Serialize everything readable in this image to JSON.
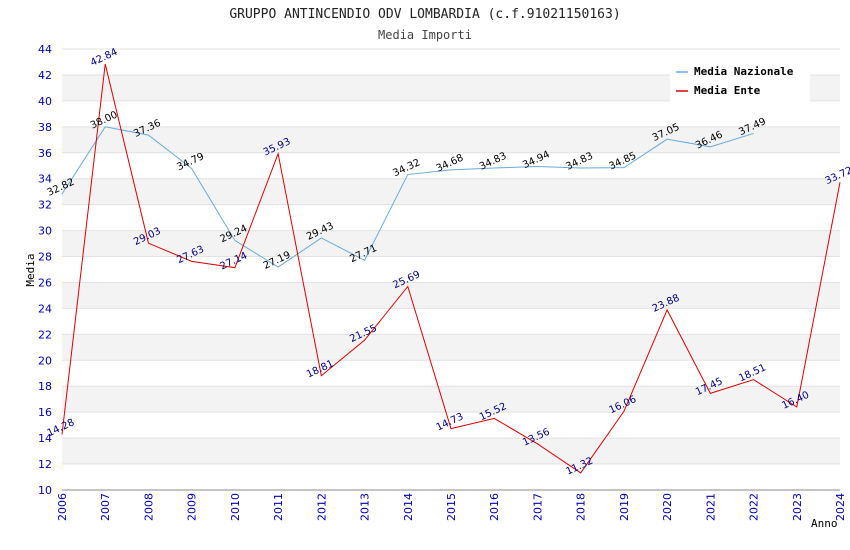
{
  "chart_data": {
    "type": "line",
    "title": "GRUPPO ANTINCENDIO ODV LOMBARDIA (c.f.91021150163)",
    "subtitle": "Media Importi",
    "xlabel": "Anno",
    "ylabel": "Media",
    "ylim": [
      10,
      44
    ],
    "y_ticks": [
      "10",
      "12",
      "14",
      "16",
      "18",
      "20",
      "22",
      "24",
      "26",
      "28",
      "30",
      "32",
      "34",
      "36",
      "38",
      "40",
      "42",
      "44"
    ],
    "categories": [
      "2006",
      "2007",
      "2008",
      "2009",
      "2010",
      "2011",
      "2012",
      "2013",
      "2014",
      "2015",
      "2016",
      "2017",
      "2018",
      "2019",
      "2020",
      "2021",
      "2022",
      "2023",
      "2024"
    ],
    "series": [
      {
        "name": "Media Nazionale",
        "color": "#66aadd",
        "values": [
          32.82,
          38.0,
          37.36,
          34.79,
          29.24,
          27.19,
          29.43,
          27.71,
          34.32,
          34.68,
          34.83,
          34.94,
          34.83,
          34.85,
          37.05,
          36.46,
          37.49,
          null,
          null
        ],
        "labels": [
          "32.82",
          "38.00",
          "37.36",
          "34.79",
          "29.24",
          "27.19",
          "29.43",
          "27.71",
          "34.32",
          "34.68",
          "34.83",
          "34.94",
          "34.83",
          "34.85",
          "37.05",
          "36.46",
          "37.49",
          null,
          null
        ]
      },
      {
        "name": "Media Ente",
        "color": "#dd0000",
        "values": [
          14.28,
          42.84,
          29.03,
          27.63,
          27.14,
          35.93,
          18.81,
          21.55,
          25.69,
          14.73,
          15.52,
          13.56,
          11.32,
          16.06,
          23.88,
          17.45,
          18.51,
          16.4,
          33.72
        ],
        "labels": [
          "14.28",
          "42.84",
          "29.03",
          "27.63",
          "27.14",
          "35.93",
          "18.81",
          "21.55",
          "25.69",
          "14.73",
          "15.52",
          "13.56",
          "11.32",
          "16.06",
          "23.88",
          "17.45",
          "18.51",
          "16.40",
          "33.72"
        ]
      }
    ],
    "legend": "top-right"
  }
}
